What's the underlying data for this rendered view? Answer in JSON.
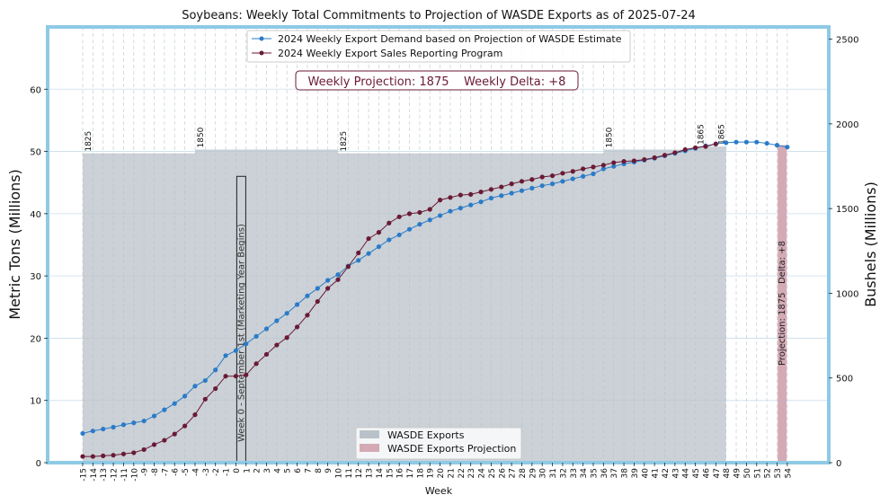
{
  "chart_data": {
    "type": "line",
    "title": "Soybeans: Weekly Total Commitments to Projection of WASDE Exports as of 2025-07-24",
    "xlabel": "Week",
    "ylabel": "Metric Tons (Millions)",
    "y2label": "Bushels (Millions)",
    "xlim": [
      -15,
      54
    ],
    "ylim": [
      0,
      70
    ],
    "y2lim": [
      0,
      2572
    ],
    "weeks": [
      -15,
      -14,
      -13,
      -12,
      -11,
      -10,
      -9,
      -8,
      -7,
      -6,
      -5,
      -4,
      -3,
      -2,
      -1,
      0,
      1,
      2,
      3,
      4,
      5,
      6,
      7,
      8,
      9,
      10,
      11,
      12,
      13,
      14,
      15,
      16,
      17,
      18,
      19,
      20,
      21,
      22,
      23,
      24,
      25,
      26,
      27,
      28,
      29,
      30,
      31,
      32,
      33,
      34,
      35,
      36,
      37,
      38,
      39,
      40,
      41,
      42,
      43,
      44,
      45,
      46,
      47,
      48,
      49,
      50,
      51,
      52,
      53,
      54
    ],
    "yticks": [
      0,
      10,
      20,
      30,
      40,
      50,
      60
    ],
    "y2ticks": [
      0,
      500,
      1000,
      1500,
      2000,
      2500
    ],
    "series": [
      {
        "name": "2024 Weekly Export Demand based on Projection of WASDE Estimate",
        "color": "#2a7bc8",
        "x": [
          -15,
          -14,
          -13,
          -12,
          -11,
          -10,
          -9,
          -8,
          -7,
          -6,
          -5,
          -4,
          -3,
          -2,
          -1,
          0,
          1,
          2,
          3,
          4,
          5,
          6,
          7,
          8,
          9,
          10,
          11,
          12,
          13,
          14,
          15,
          16,
          17,
          18,
          19,
          20,
          21,
          22,
          23,
          24,
          25,
          26,
          27,
          28,
          29,
          30,
          31,
          32,
          33,
          34,
          35,
          36,
          37,
          38,
          39,
          40,
          41,
          42,
          43,
          44,
          45,
          46,
          47,
          48,
          49,
          50,
          51,
          52,
          53,
          54
        ],
        "values": [
          4.7,
          5.1,
          5.4,
          5.7,
          6.1,
          6.4,
          6.7,
          7.5,
          8.5,
          9.5,
          10.7,
          12.3,
          13.2,
          14.9,
          17.2,
          18.0,
          19.1,
          20.3,
          21.5,
          22.8,
          24.0,
          25.4,
          26.8,
          28.0,
          29.3,
          30.2,
          31.6,
          32.5,
          33.6,
          34.7,
          35.8,
          36.6,
          37.5,
          38.3,
          39.0,
          39.7,
          40.4,
          40.9,
          41.4,
          41.9,
          42.5,
          42.9,
          43.3,
          43.7,
          44.1,
          44.5,
          44.8,
          45.2,
          45.6,
          46.0,
          46.4,
          47.2,
          47.6,
          48.0,
          48.3,
          48.6,
          48.9,
          49.3,
          49.7,
          50.1,
          50.5,
          50.9,
          51.2,
          51.4,
          51.5,
          51.5,
          51.5,
          51.3,
          51.0,
          50.7
        ]
      },
      {
        "name": "2024 Weekly Export Sales Reporting Program",
        "color": "#6a1a35",
        "x": [
          -15,
          -14,
          -13,
          -12,
          -11,
          -10,
          -9,
          -8,
          -7,
          -6,
          -5,
          -4,
          -3,
          -2,
          -1,
          0,
          1,
          2,
          3,
          4,
          5,
          6,
          7,
          8,
          9,
          10,
          11,
          12,
          13,
          14,
          15,
          16,
          17,
          18,
          19,
          20,
          21,
          22,
          23,
          24,
          25,
          26,
          27,
          28,
          29,
          30,
          31,
          32,
          33,
          34,
          35,
          36,
          37,
          38,
          39,
          40,
          41,
          42,
          43,
          44,
          45,
          46,
          47
        ],
        "values": [
          1.0,
          1.0,
          1.1,
          1.2,
          1.4,
          1.6,
          2.1,
          2.9,
          3.6,
          4.6,
          5.9,
          7.7,
          10.2,
          11.9,
          13.9,
          13.9,
          14.1,
          15.9,
          17.4,
          18.9,
          20.1,
          21.8,
          23.7,
          25.9,
          28.0,
          29.4,
          31.5,
          33.7,
          36.0,
          37.0,
          38.5,
          39.5,
          40.0,
          40.2,
          40.7,
          42.2,
          42.6,
          43.0,
          43.1,
          43.5,
          43.9,
          44.3,
          44.8,
          45.2,
          45.5,
          45.9,
          46.1,
          46.5,
          46.8,
          47.2,
          47.5,
          47.8,
          48.2,
          48.4,
          48.5,
          48.7,
          49.0,
          49.4,
          49.8,
          50.3,
          50.6,
          50.8,
          51.2
        ]
      }
    ],
    "wasde_bars": {
      "name": "WASDE Exports",
      "color": "#b9c2c8",
      "segments": [
        {
          "from": -15,
          "to": -4,
          "mt": 49.7,
          "label": "1825"
        },
        {
          "from": -4,
          "to": 10,
          "mt": 50.3,
          "label": "1850"
        },
        {
          "from": 10,
          "to": 36,
          "mt": 49.7,
          "label": "1825"
        },
        {
          "from": 36,
          "to": 45,
          "mt": 50.3,
          "label": "1850"
        },
        {
          "from": 45,
          "to": 47,
          "mt": 50.8,
          "label": "1865"
        },
        {
          "from": 47,
          "to": 48,
          "mt": 50.8,
          "label": "1865"
        }
      ]
    },
    "projection_bar": {
      "name": "WASDE Exports Projection",
      "color": "#d4aab5",
      "week": 53.5,
      "mt": 51.0
    },
    "projection_bar_label": "Projection: 1875   Delta: +8",
    "week0_label": "Week 0 - September 1st (Marketing Year Begins)",
    "annotation": "Weekly Projection: 1875    Weekly Delta: +8",
    "legend_top": [
      "2024 Weekly Export Demand based on Projection of WASDE Estimate",
      "2024 Weekly Export Sales Reporting Program"
    ],
    "legend_bottom": [
      "WASDE Exports",
      "WASDE Exports Projection"
    ]
  }
}
